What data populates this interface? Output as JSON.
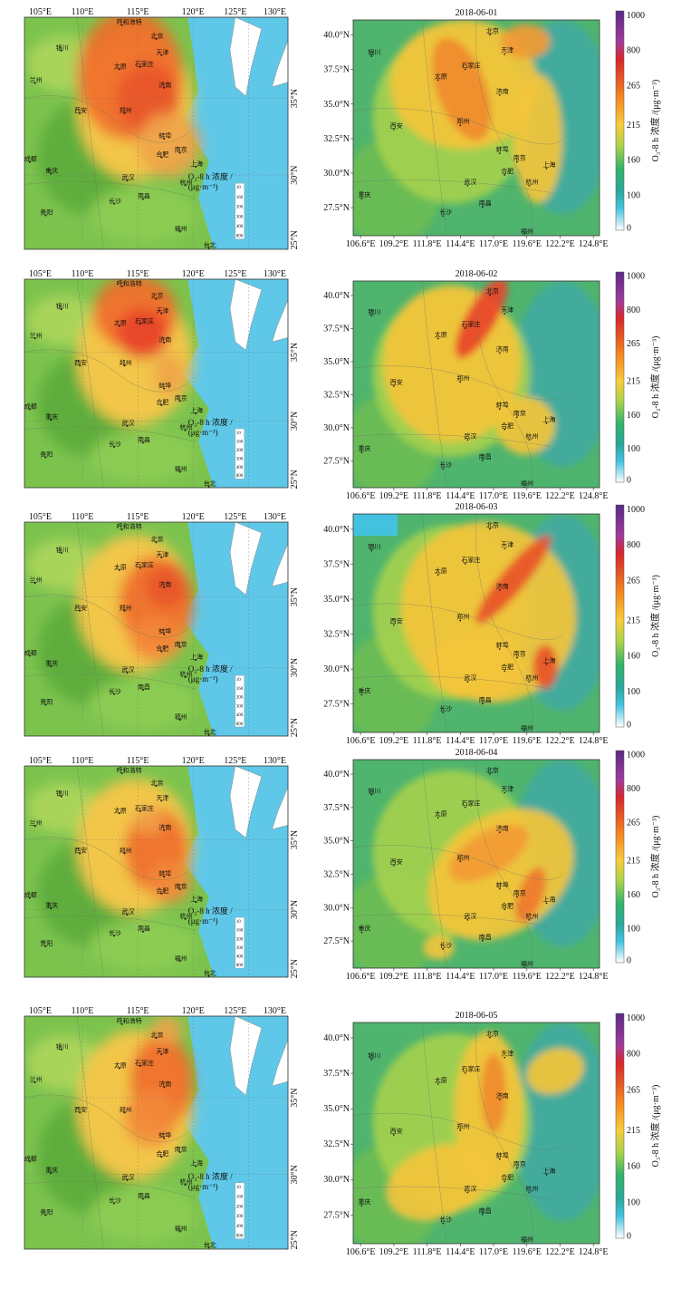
{
  "left_maps": {
    "lon_ticks": [
      "105°E",
      "110°E",
      "115°E",
      "120°E",
      "125°E",
      "130°E"
    ],
    "lat_ticks": [
      "35°N",
      "30°N",
      "25°N"
    ],
    "legend_title_1": "O₃-8 h 浓度 /",
    "legend_title_2": "(μg·m⁻³)",
    "legend_ticks": [
      "10",
      "160",
      "200",
      "300",
      "400",
      "800"
    ]
  },
  "right_maps": {
    "lon_ticks": [
      "106.6°E",
      "109.2°E",
      "111.8°E",
      "114.4°E",
      "117.0°E",
      "119.6°E",
      "122.2°E",
      "124.8°E"
    ],
    "lat_ticks": [
      "40.0°N",
      "37.5°N",
      "35.0°N",
      "32.5°N",
      "30.0°N",
      "27.5°N"
    ],
    "colorbar_ticks": [
      "1000",
      "800",
      "265",
      "215",
      "160",
      "100",
      "0"
    ],
    "colorbar_colors": [
      "#6a2a8c",
      "#d8262b",
      "#f58a1f",
      "#f7cd3c",
      "#7bc043",
      "#34b36a",
      "#43c2e0",
      "#ffffff"
    ],
    "colorbar_title": "O₃-8 h 浓度 /(μg·m⁻³)"
  },
  "cities": [
    "呼和浩特",
    "北京",
    "天津",
    "银川",
    "太原",
    "石家庄",
    "济南",
    "兰州",
    "西安",
    "郑州",
    "蚌埠",
    "南京",
    "合肥",
    "上海",
    "成都",
    "重庆",
    "武汉",
    "杭州",
    "长沙",
    "南昌",
    "贵阳",
    "福州",
    "台北"
  ],
  "panels": [
    {
      "date": "2018-06-01"
    },
    {
      "date": "2018-06-02"
    },
    {
      "date": "2018-06-03"
    },
    {
      "date": "2018-06-04"
    },
    {
      "date": "2018-06-05"
    }
  ]
}
